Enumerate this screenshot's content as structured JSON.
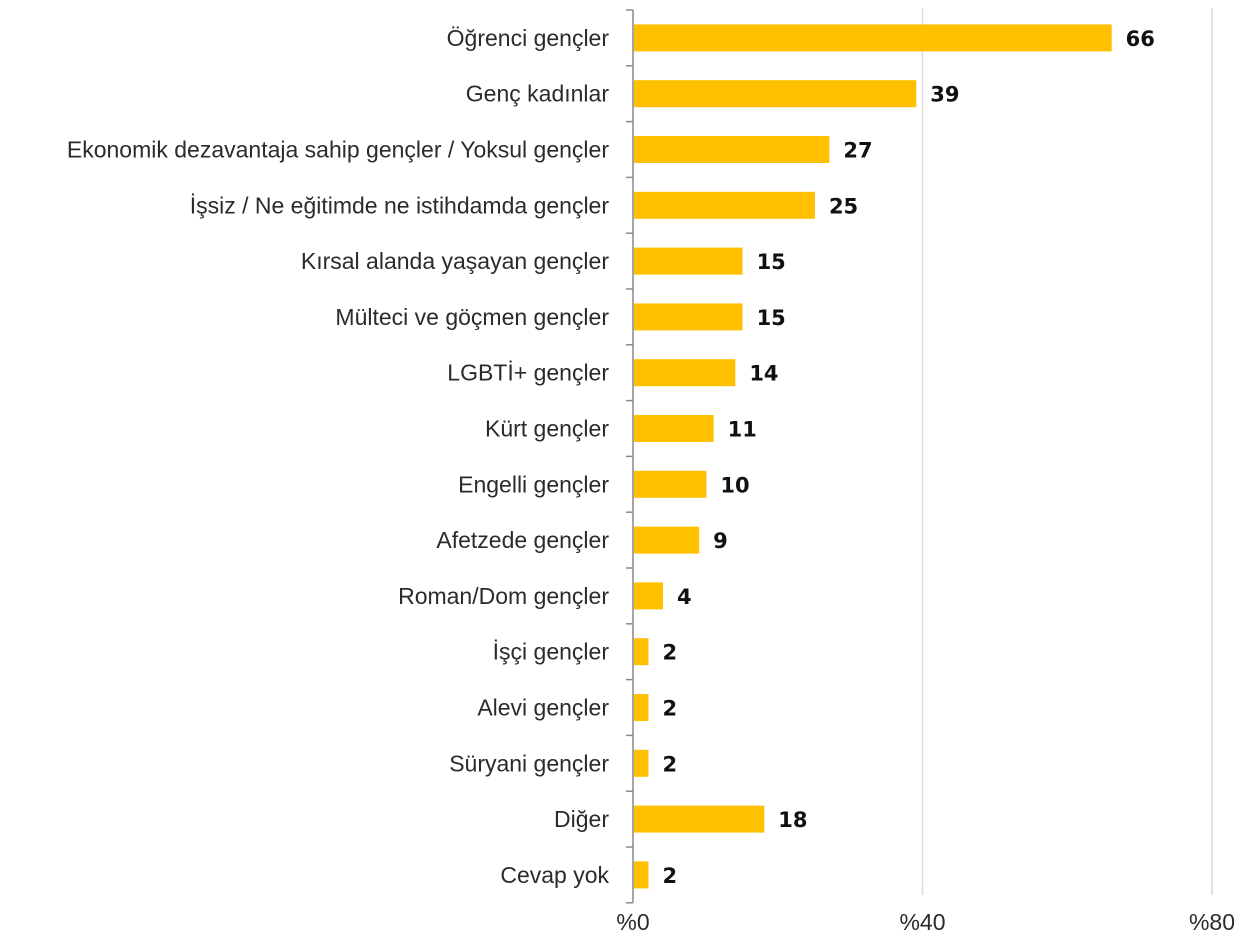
{
  "chart_data": {
    "type": "bar",
    "orientation": "horizontal",
    "categories": [
      "Öğrenci gençler",
      "Genç kadınlar",
      "Ekonomik dezavantaja sahip gençler / Yoksul gençler",
      "İşsiz / Ne eğitimde ne istihdamda gençler",
      "Kırsal alanda yaşayan gençler",
      "Mülteci ve göçmen gençler",
      "LGBTİ+ gençler",
      "Kürt gençler",
      "Engelli gençler",
      "Afetzede gençler",
      "Roman/Dom gençler",
      "İşçi gençler",
      "Alevi gençler",
      "Süryani gençler",
      "Diğer",
      "Cevap yok"
    ],
    "values": [
      66,
      39,
      27,
      25,
      15,
      15,
      14,
      11,
      10,
      9,
      4,
      2,
      2,
      2,
      18,
      2
    ],
    "data_labels": [
      "66",
      "39",
      "27",
      "25",
      "15",
      "15",
      "14",
      "11",
      "10",
      "9",
      "4",
      "2",
      "2",
      "2",
      "18",
      "2"
    ],
    "x_ticks": [
      0,
      40,
      80
    ],
    "x_tick_labels": [
      "%0",
      "%40",
      "%80"
    ],
    "xlim": [
      0,
      80
    ],
    "title": "",
    "xlabel": "",
    "ylabel": "",
    "grid": "vertical",
    "legend": "none",
    "bar_color": "#FFC000",
    "grid_color": "#D9D9D9",
    "axis_color": "#888888"
  }
}
